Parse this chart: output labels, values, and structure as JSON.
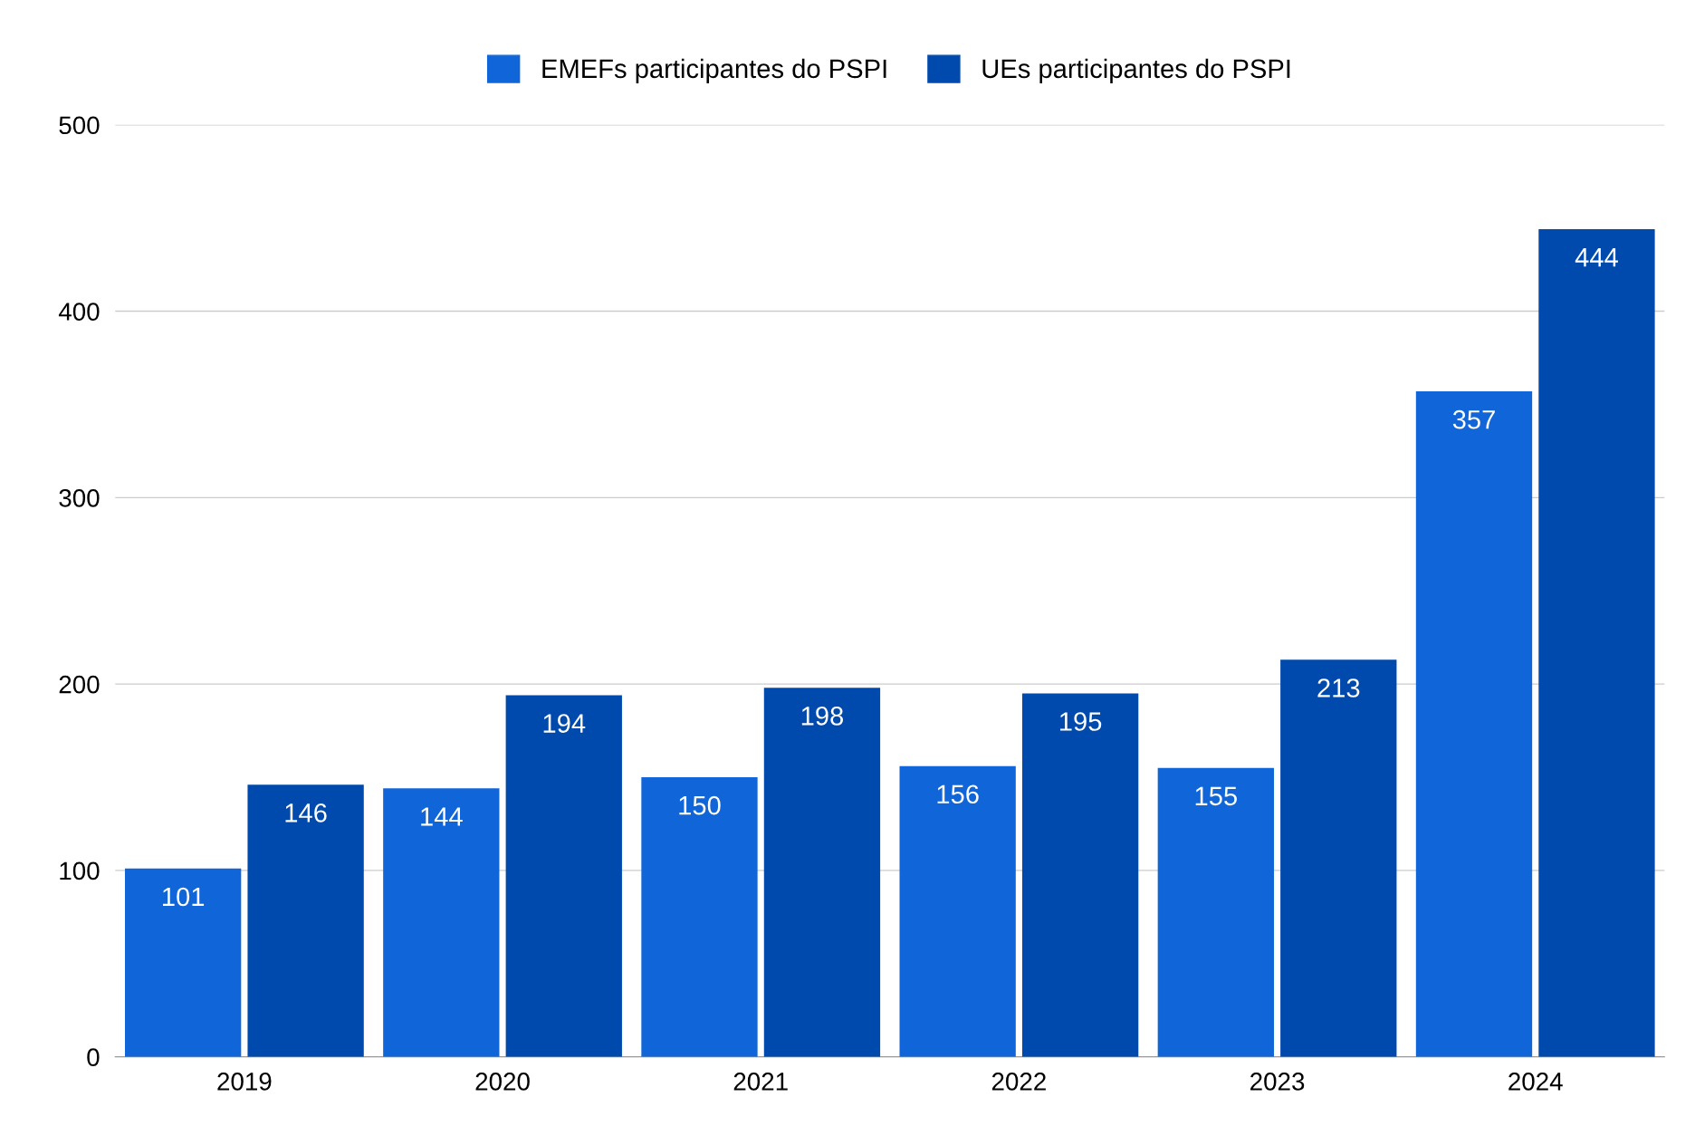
{
  "chart_data": {
    "type": "bar",
    "categories": [
      "2019",
      "2020",
      "2021",
      "2022",
      "2023",
      "2024"
    ],
    "series": [
      {
        "name": "EMEFs participantes do PSPI",
        "color": "#1066d8",
        "values": [
          101,
          144,
          150,
          156,
          155,
          357
        ]
      },
      {
        "name": "UEs participantes do PSPI",
        "color": "#004aad",
        "values": [
          146,
          194,
          198,
          195,
          213,
          444
        ]
      }
    ],
    "ylim": [
      0,
      500
    ],
    "yticks": [
      0,
      100,
      200,
      300,
      400,
      500
    ],
    "grid": "y",
    "legend": "top",
    "data_labels": true
  }
}
